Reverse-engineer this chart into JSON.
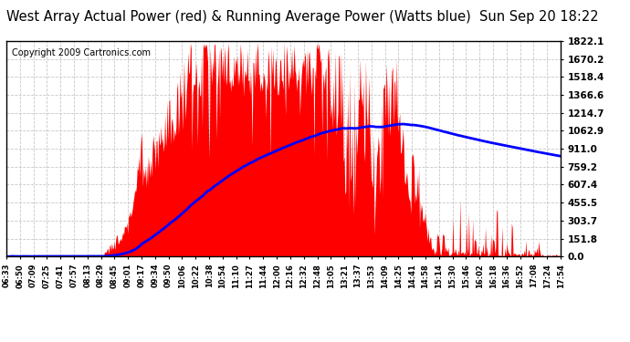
{
  "title": "West Array Actual Power (red) & Running Average Power (Watts blue)  Sun Sep 20 18:22",
  "copyright": "Copyright 2009 Cartronics.com",
  "background_color": "#ffffff",
  "plot_bg_color": "#ffffff",
  "grid_color": "#c8c8c8",
  "y_ticks": [
    0.0,
    151.8,
    303.7,
    455.5,
    607.4,
    759.2,
    911.0,
    1062.9,
    1214.7,
    1366.6,
    1518.4,
    1670.2,
    1822.1
  ],
  "y_max": 1822.1,
  "x_labels": [
    "06:33",
    "06:50",
    "07:09",
    "07:25",
    "07:41",
    "07:57",
    "08:13",
    "08:29",
    "08:45",
    "09:01",
    "09:17",
    "09:34",
    "09:50",
    "10:06",
    "10:22",
    "10:38",
    "10:54",
    "11:10",
    "11:27",
    "11:44",
    "12:00",
    "12:16",
    "12:32",
    "12:48",
    "13:05",
    "13:21",
    "13:37",
    "13:53",
    "14:09",
    "14:25",
    "14:41",
    "14:58",
    "15:14",
    "15:30",
    "15:46",
    "16:02",
    "16:18",
    "16:36",
    "16:52",
    "17:08",
    "17:24",
    "17:54"
  ],
  "bar_color": "#ff0000",
  "line_color": "#0000ff",
  "title_fontsize": 10.5,
  "copyright_fontsize": 7,
  "tick_fontsize": 7.5
}
